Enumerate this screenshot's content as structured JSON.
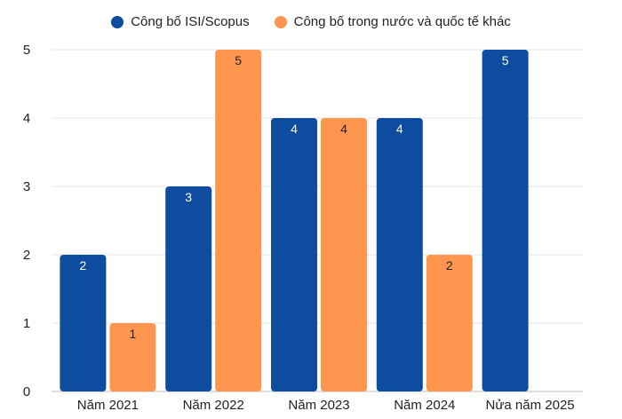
{
  "chart_data": {
    "type": "bar",
    "categories": [
      "Năm 2021",
      "Năm 2022",
      "Năm 2023",
      "Năm 2024",
      "Nửa năm 2025"
    ],
    "series": [
      {
        "name": "Công bố ISI/Scopus",
        "color": "#0d4c9e",
        "values": [
          2,
          3,
          4,
          4,
          5
        ]
      },
      {
        "name": "Công bố trong nước và quốc tế khác",
        "color": "#ff9650",
        "values": [
          1,
          5,
          4,
          2,
          null
        ]
      }
    ],
    "ylim": [
      0,
      5
    ],
    "yticks": [
      "0",
      "1",
      "2",
      "3",
      "4",
      "5"
    ],
    "grid": true,
    "legend_position": "top-center",
    "data_labels": true
  }
}
